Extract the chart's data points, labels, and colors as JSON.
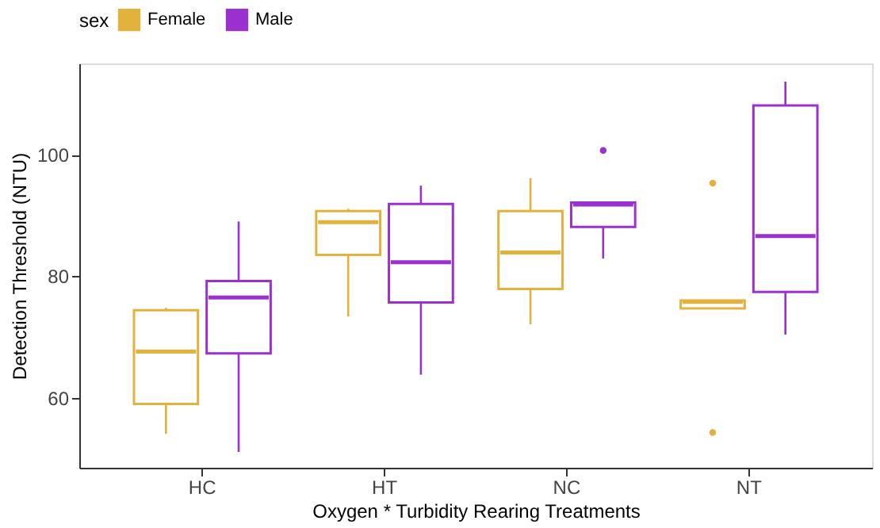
{
  "chart_data": {
    "type": "box",
    "xlabel": "Oxygen * Turbidity Rearing Treatments",
    "ylabel": "Detection Threshold (NTU)",
    "legend_title": "sex",
    "legend": "top",
    "categories": [
      "HC",
      "HT",
      "NC",
      "NT"
    ],
    "ylim": [
      48.5,
      115
    ],
    "yticks": [
      60,
      80,
      100
    ],
    "grid": false,
    "series": [
      {
        "name": "Female",
        "color": "#e3b23c",
        "boxes": [
          {
            "low": 54.1,
            "q1": 59.0,
            "median": 67.6,
            "q3": 74.4,
            "high": 74.8
          },
          {
            "low": 73.4,
            "q1": 83.5,
            "median": 88.9,
            "q3": 90.7,
            "high": 91.1
          },
          {
            "low": 72.1,
            "q1": 77.9,
            "median": 83.9,
            "q3": 90.7,
            "high": 96.1
          },
          {
            "low": 74.7,
            "q1": 74.7,
            "median": 75.8,
            "q3": 76.0,
            "high": 76.0,
            "outliers": [
              95.3,
              54.3
            ]
          }
        ]
      },
      {
        "name": "Male",
        "color": "#9b30d0",
        "boxes": [
          {
            "low": 51.1,
            "q1": 67.3,
            "median": 76.5,
            "q3": 79.2,
            "high": 89.0
          },
          {
            "low": 63.8,
            "q1": 75.7,
            "median": 82.3,
            "q3": 91.9,
            "high": 94.9
          },
          {
            "low": 82.9,
            "q1": 88.1,
            "median": 91.8,
            "q3": 92.1,
            "high": 92.1,
            "outliers": [
              100.7
            ]
          },
          {
            "low": 70.4,
            "q1": 77.4,
            "median": 86.6,
            "q3": 108.1,
            "high": 112.0
          }
        ]
      }
    ]
  }
}
